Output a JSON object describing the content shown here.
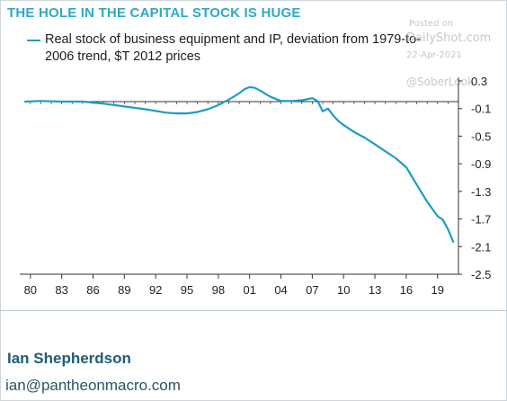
{
  "title": "THE HOLE IN THE CAPITAL STOCK IS HUGE",
  "watermark": {
    "posted": "Posted on",
    "site": "DailyShot.com",
    "date": "22-Apr-2021",
    "handle": "@SoberLook"
  },
  "colors": {
    "title": "#2fa8c4",
    "series": "#1f9cc4",
    "author": "#1c5d74"
  },
  "chart_data": {
    "type": "line",
    "legend_position": "top-left",
    "grid": false,
    "xlim": [
      1979.5,
      2021
    ],
    "ylim": [
      -2.5,
      0.3
    ],
    "x_tick_labels": [
      "80",
      "83",
      "86",
      "89",
      "92",
      "95",
      "98",
      "01",
      "04",
      "07",
      "10",
      "13",
      "16",
      "19"
    ],
    "x_tick_years": [
      1980,
      1983,
      1986,
      1989,
      1992,
      1995,
      1998,
      2001,
      2004,
      2007,
      2010,
      2013,
      2016,
      2019
    ],
    "y_ticks": [
      0.3,
      -0.1,
      -0.5,
      -0.9,
      -1.3,
      -1.7,
      -2.1,
      -2.5
    ],
    "y_tick_labels": [
      "0.3",
      "-0.1",
      "-0.5",
      "-0.9",
      "-1.3",
      "-1.7",
      "-2.1",
      "-2.5"
    ],
    "zero_line": 0,
    "series": [
      {
        "name": "Real stock of business equipment and IP, deviation from 1979-to-2006 trend, $T 2012 prices",
        "x": [
          1979.5,
          1981,
          1983,
          1985,
          1987,
          1989,
          1991,
          1993,
          1994,
          1995,
          1996,
          1997,
          1998,
          1999,
          2000,
          2000.5,
          2001,
          2001.5,
          2002,
          2003,
          2004,
          2005,
          2006,
          2007,
          2007.5,
          2008,
          2008.5,
          2009,
          2009.5,
          2010,
          2011,
          2012,
          2013,
          2014,
          2015,
          2016,
          2017,
          2018,
          2019,
          2019.5,
          2020,
          2020.5
        ],
        "y": [
          0.0,
          0.01,
          0.0,
          0.0,
          -0.03,
          -0.07,
          -0.11,
          -0.16,
          -0.17,
          -0.17,
          -0.15,
          -0.11,
          -0.05,
          0.03,
          0.12,
          0.18,
          0.21,
          0.2,
          0.16,
          0.07,
          0.01,
          0.01,
          0.02,
          0.05,
          0.01,
          -0.14,
          -0.1,
          -0.2,
          -0.28,
          -0.34,
          -0.44,
          -0.52,
          -0.62,
          -0.72,
          -0.82,
          -0.95,
          -1.2,
          -1.45,
          -1.66,
          -1.71,
          -1.85,
          -2.03
        ]
      }
    ]
  },
  "author": {
    "name": "Ian Shepherdson",
    "email": "ian@pantheonmacro.com"
  }
}
